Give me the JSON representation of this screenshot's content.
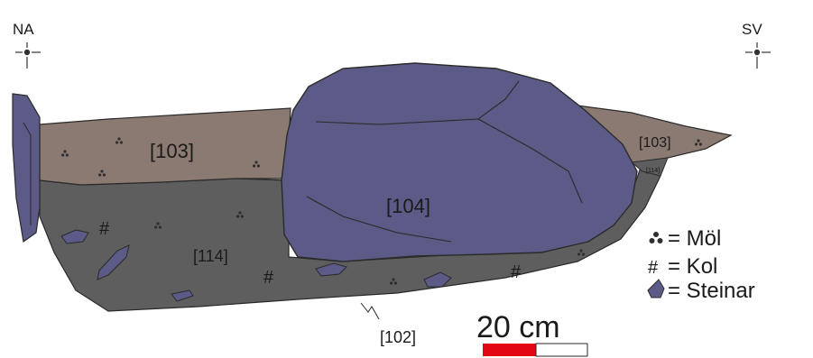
{
  "compass": {
    "left": "NA",
    "right": "SV"
  },
  "layers": {
    "upper_left": "[103]",
    "upper_right": "[103]",
    "lower": "[114]",
    "lower_small": "[114]",
    "stone": "[104]",
    "cut": "[102]"
  },
  "legend": {
    "items": [
      {
        "label": "= Möl",
        "symbol": "gravel-dots"
      },
      {
        "label": "= Kol",
        "symbol": "hash"
      },
      {
        "label": "= Steinar",
        "symbol": "stone-drop"
      }
    ]
  },
  "scale_bar": {
    "label": "20 cm",
    "colors": [
      "#e30613",
      "#ffffff"
    ]
  },
  "colors": {
    "layer_103": "#8b7a72",
    "layer_114": "#5e5e5e",
    "stone": "#5c5a86",
    "outline": "#2a2a2a"
  }
}
